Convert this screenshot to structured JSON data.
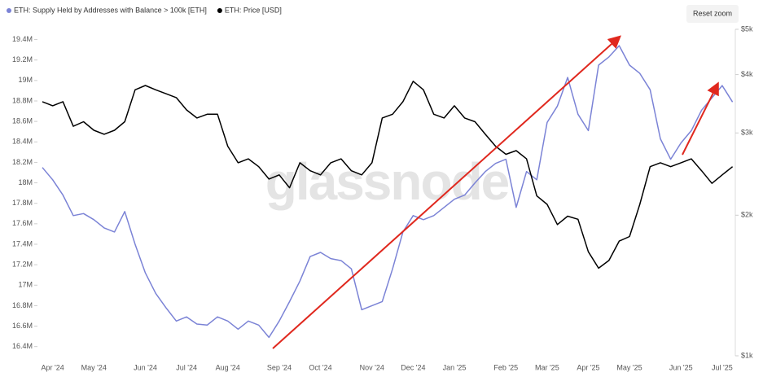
{
  "chart_data": {
    "type": "line",
    "watermark": "glassnode",
    "reset_button": "Reset zoom",
    "categories": [
      null,
      "Apr '24",
      null,
      null,
      null,
      "May '24",
      null,
      null,
      null,
      null,
      "Jun '24",
      null,
      null,
      null,
      "Jul '24",
      null,
      null,
      null,
      "Aug '24",
      null,
      null,
      null,
      null,
      "Sep '24",
      null,
      null,
      null,
      "Oct '24",
      null,
      null,
      null,
      null,
      "Nov '24",
      null,
      null,
      null,
      "Dec '24",
      null,
      null,
      null,
      "Jan '25",
      null,
      null,
      null,
      null,
      "Feb '25",
      null,
      null,
      null,
      "Mar '25",
      null,
      null,
      null,
      "Apr '25",
      null,
      null,
      null,
      "May '25",
      null,
      null,
      null,
      null,
      "Jun '25",
      null,
      null,
      null,
      "Jul '25",
      null
    ],
    "series": [
      {
        "name": "ETH: Supply Held by Addresses with Balance > 100k [ETH]",
        "color": "#7b83d6",
        "axis": "y",
        "values": [
          18150000,
          18030000,
          17880000,
          17680000,
          17700000,
          17640000,
          17560000,
          17520000,
          17720000,
          17400000,
          17120000,
          16920000,
          16780000,
          16650000,
          16690000,
          16620000,
          16610000,
          16690000,
          16650000,
          16570000,
          16650000,
          16610000,
          16490000,
          16650000,
          16840000,
          17040000,
          17280000,
          17320000,
          17260000,
          17240000,
          17160000,
          16760000,
          16800000,
          16840000,
          17160000,
          17520000,
          17680000,
          17640000,
          17680000,
          17760000,
          17840000,
          17880000,
          18000000,
          18110000,
          18190000,
          18230000,
          17760000,
          18110000,
          18030000,
          18590000,
          18750000,
          19030000,
          18670000,
          18510000,
          19150000,
          19230000,
          19340000,
          19150000,
          19070000,
          18910000,
          18430000,
          18230000,
          18390000,
          18510000,
          18710000,
          18830000,
          18950000,
          18790000
        ]
      },
      {
        "name": "ETH: Price [USD]",
        "color": "#000000",
        "axis": "y2",
        "values": [
          3500,
          3430,
          3500,
          3100,
          3170,
          3040,
          2980,
          3040,
          3170,
          3710,
          3790,
          3710,
          3640,
          3570,
          3360,
          3230,
          3290,
          3290,
          2810,
          2590,
          2640,
          2540,
          2390,
          2440,
          2290,
          2590,
          2490,
          2440,
          2590,
          2640,
          2490,
          2440,
          2590,
          3230,
          3290,
          3500,
          3870,
          3710,
          3290,
          3230,
          3430,
          3230,
          3170,
          2980,
          2810,
          2700,
          2750,
          2640,
          2200,
          2110,
          1910,
          1990,
          1960,
          1670,
          1540,
          1600,
          1760,
          1800,
          2110,
          2540,
          2590,
          2540,
          2590,
          2640,
          2490,
          2340,
          2440,
          2540
        ]
      }
    ],
    "ylim": [
      16310000,
      19500000
    ],
    "yticks": [
      {
        "value": 16400000,
        "label": "16.4M"
      },
      {
        "value": 16600000,
        "label": "16.6M"
      },
      {
        "value": 16800000,
        "label": "16.8M"
      },
      {
        "value": 17000000,
        "label": "17M"
      },
      {
        "value": 17200000,
        "label": "17.2M"
      },
      {
        "value": 17400000,
        "label": "17.4M"
      },
      {
        "value": 17600000,
        "label": "17.6M"
      },
      {
        "value": 17800000,
        "label": "17.8M"
      },
      {
        "value": 18000000,
        "label": "18M"
      },
      {
        "value": 18200000,
        "label": "18.2M"
      },
      {
        "value": 18400000,
        "label": "18.4M"
      },
      {
        "value": 18600000,
        "label": "18.6M"
      },
      {
        "value": 18800000,
        "label": "18.8M"
      },
      {
        "value": 19000000,
        "label": "19M"
      },
      {
        "value": 19200000,
        "label": "19.2M"
      },
      {
        "value": 19400000,
        "label": "19.4M"
      }
    ],
    "y2lim": [
      1000,
      5000
    ],
    "y2_log": true,
    "y2ticks": [
      {
        "value": 1000,
        "label": "$1k"
      },
      {
        "value": 2000,
        "label": "$2k"
      },
      {
        "value": 3000,
        "label": "$3k"
      },
      {
        "value": 4000,
        "label": "$4k"
      },
      {
        "value": 5000,
        "label": "$5k"
      }
    ],
    "grid": false,
    "legend": "top-left"
  }
}
